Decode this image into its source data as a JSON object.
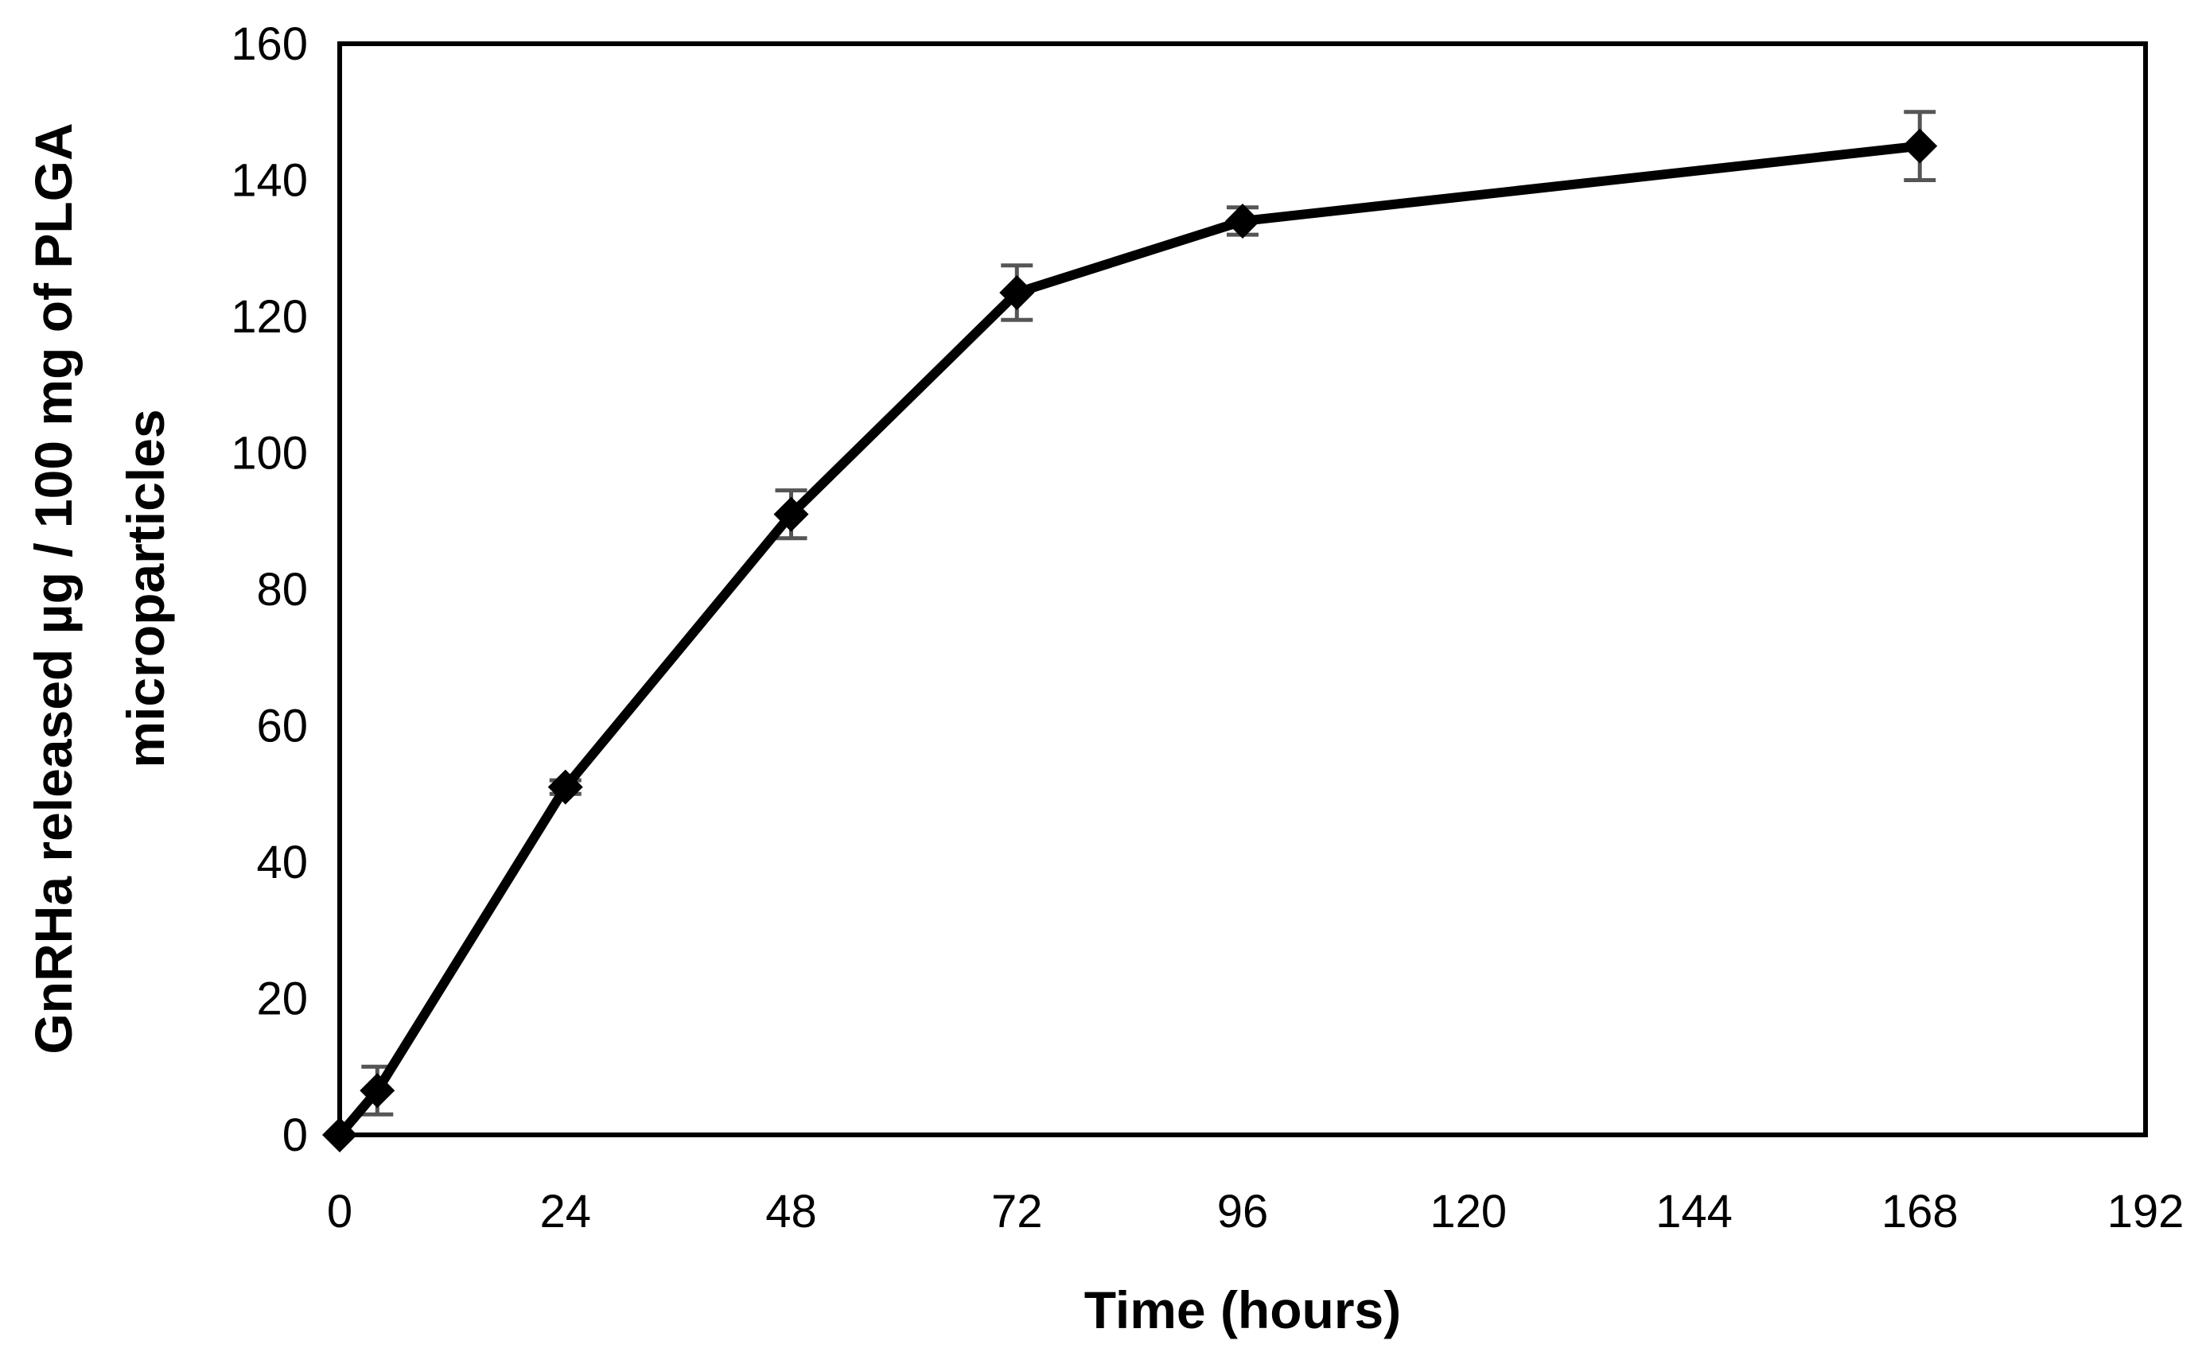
{
  "chart_data": {
    "type": "line",
    "xlabel": "Time (hours)",
    "ylabel_lines": [
      "GnRHa released µg / 100 mg of PLGA",
      "microparticles"
    ],
    "xlim": [
      0,
      192
    ],
    "ylim": [
      0,
      160
    ],
    "x_ticks": [
      0,
      24,
      48,
      72,
      96,
      120,
      144,
      168,
      192
    ],
    "y_ticks": [
      0,
      20,
      40,
      60,
      80,
      100,
      120,
      140,
      160
    ],
    "grid": false,
    "series": [
      {
        "marker": "diamond",
        "color": "#000000",
        "error_bar_color": "#555555",
        "points": [
          {
            "x": 0,
            "y": 0,
            "err": 0
          },
          {
            "x": 4,
            "y": 6.5,
            "err": 3.5
          },
          {
            "x": 24,
            "y": 51,
            "err": 1
          },
          {
            "x": 48,
            "y": 91,
            "err": 3.5
          },
          {
            "x": 72,
            "y": 123.5,
            "err": 4
          },
          {
            "x": 96,
            "y": 134,
            "err": 2
          },
          {
            "x": 168,
            "y": 145,
            "err": 5
          }
        ]
      }
    ]
  }
}
